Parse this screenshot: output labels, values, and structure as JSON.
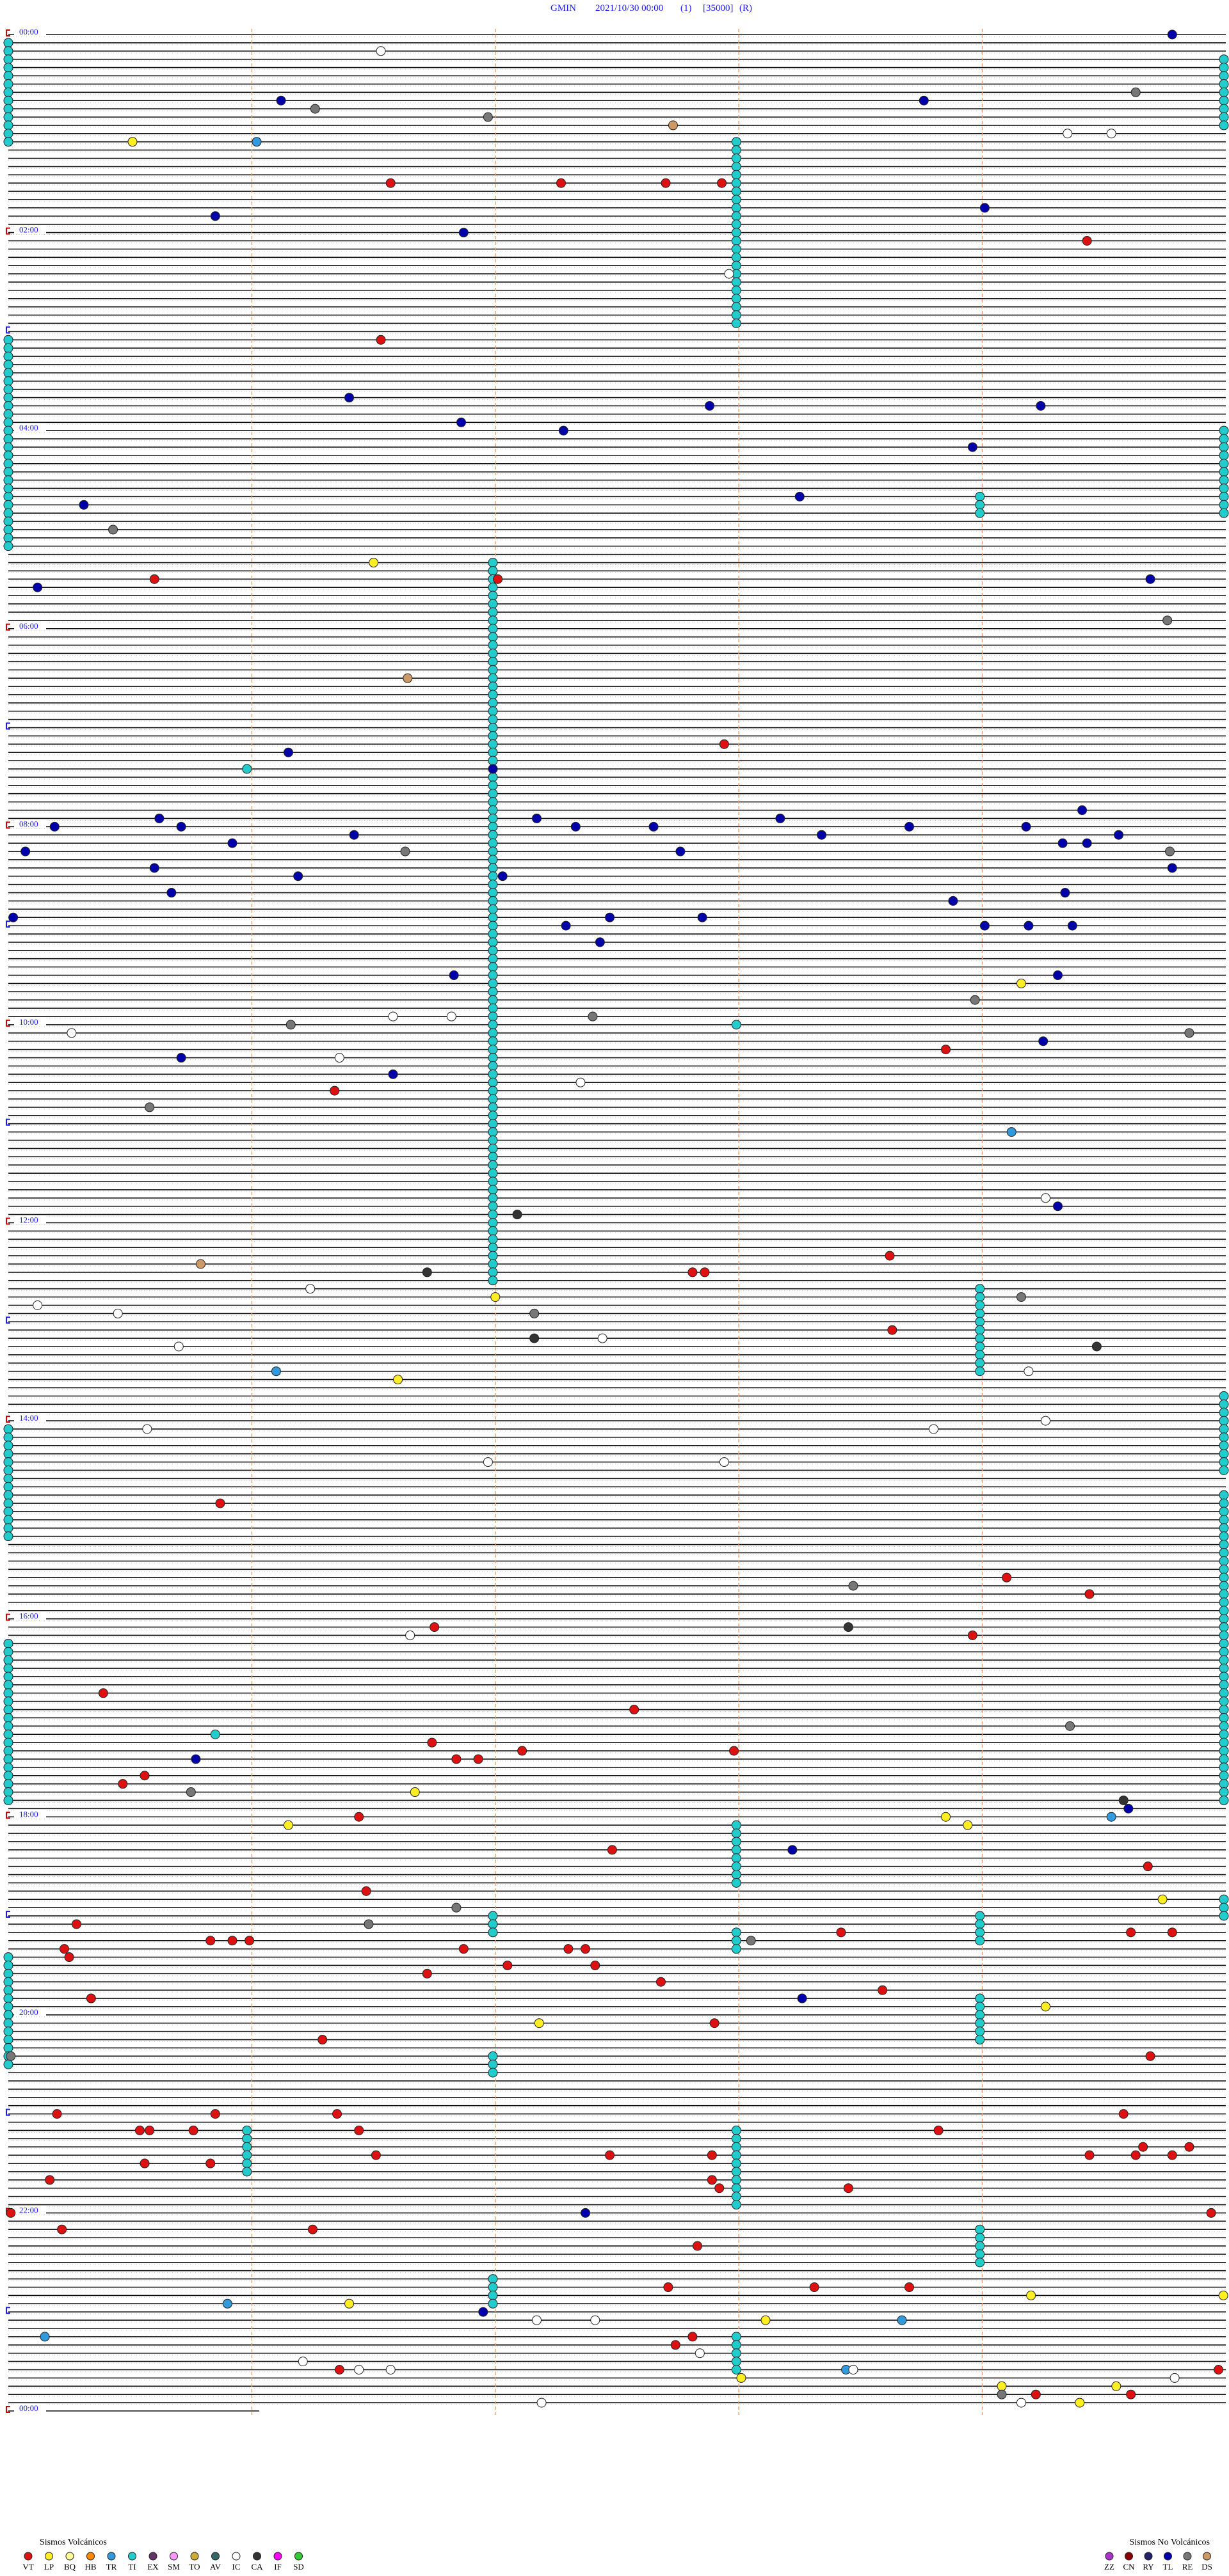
{
  "header": {
    "station": "GMIN",
    "datetime": "2021/10/30 00:00",
    "channel": "(1)",
    "gain": "[35000]",
    "mode": "(R)"
  },
  "hour_labels": [
    "00:00",
    "02:00",
    "04:00",
    "06:00",
    "08:00",
    "10:00",
    "12:00",
    "14:00",
    "16:00",
    "18:00",
    "20:00",
    "22:00",
    "00:00"
  ],
  "legend": {
    "volcanic": {
      "title": "Sismos Volcánicos",
      "items": [
        {
          "code": "VT",
          "color": "#dd1111"
        },
        {
          "code": "LP",
          "color": "#ffee22"
        },
        {
          "code": "BQ",
          "color": "#ffff99"
        },
        {
          "code": "HB",
          "color": "#ff8800"
        },
        {
          "code": "TR",
          "color": "#3399dd"
        },
        {
          "code": "TI",
          "color": "#22cccc"
        },
        {
          "code": "EX",
          "color": "#663366"
        },
        {
          "code": "SM",
          "color": "#ff99ff"
        },
        {
          "code": "TO",
          "color": "#ccaa33"
        },
        {
          "code": "AV",
          "color": "#336666"
        },
        {
          "code": "IC",
          "color": "#ffffff"
        },
        {
          "code": "CA",
          "color": "#333333"
        },
        {
          "code": "IF",
          "color": "#ff00ff"
        },
        {
          "code": "SD",
          "color": "#33cc33"
        }
      ]
    },
    "non_volcanic": {
      "title": "Sismos No Volcánicos",
      "items": [
        {
          "code": "ZZ",
          "color": "#aa33cc"
        },
        {
          "code": "CN",
          "color": "#880000"
        },
        {
          "code": "RY",
          "color": "#222266"
        },
        {
          "code": "TL",
          "color": "#0000aa"
        },
        {
          "code": "RE",
          "color": "#777777"
        },
        {
          "code": "DS",
          "color": "#cc9966"
        }
      ]
    }
  },
  "events": [
    [
      0,
      4.78,
      "TL"
    ],
    [
      2,
      1.53,
      "IC"
    ],
    [
      8,
      1.12,
      "TL"
    ],
    [
      9,
      1.26,
      "RE"
    ],
    [
      8,
      3.76,
      "TL"
    ],
    [
      7,
      4.63,
      "RE"
    ],
    [
      10,
      1.97,
      "RE"
    ],
    [
      11,
      2.73,
      "DS"
    ],
    [
      13,
      0.51,
      "LP"
    ],
    [
      13,
      1.02,
      "TR"
    ],
    [
      12,
      4.35,
      "IC"
    ],
    [
      12,
      4.53,
      "IC"
    ],
    [
      18,
      1.57,
      "VT"
    ],
    [
      18,
      2.27,
      "VT"
    ],
    [
      18,
      2.7,
      "VT"
    ],
    [
      18,
      2.93,
      "VT"
    ],
    [
      22,
      0.85,
      "TL"
    ],
    [
      21,
      4.01,
      "TL"
    ],
    [
      24,
      1.87,
      "TL"
    ],
    [
      25,
      4.43,
      "VT"
    ],
    [
      29,
      2.96,
      "IC"
    ],
    [
      37,
      1.53,
      "VT"
    ],
    [
      44,
      1.4,
      "TL"
    ],
    [
      45,
      2.88,
      "TL"
    ],
    [
      45,
      4.24,
      "TL"
    ],
    [
      47,
      1.86,
      "TL"
    ],
    [
      48,
      2.28,
      "TL"
    ],
    [
      50,
      3.96,
      "TL"
    ],
    [
      56,
      3.25,
      "TL"
    ],
    [
      57,
      0.31,
      "TL"
    ],
    [
      60,
      0.43,
      "RE"
    ],
    [
      64,
      1.5,
      "LP"
    ],
    [
      66,
      0.6,
      "VT"
    ],
    [
      66,
      2.01,
      "VT"
    ],
    [
      66,
      4.69,
      "TL"
    ],
    [
      67,
      0.12,
      "TL"
    ],
    [
      71,
      4.76,
      "RE"
    ],
    [
      78,
      1.64,
      "DS"
    ],
    [
      86,
      2.94,
      "VT"
    ],
    [
      87,
      1.15,
      "TL"
    ],
    [
      89,
      0.98,
      "TI"
    ],
    [
      89,
      1.99,
      "TL"
    ],
    [
      94,
      4.41,
      "TL"
    ],
    [
      95,
      0.62,
      "TL"
    ],
    [
      95,
      2.17,
      "TL"
    ],
    [
      95,
      3.17,
      "TL"
    ],
    [
      96,
      0.19,
      "TL"
    ],
    [
      96,
      0.71,
      "TL"
    ],
    [
      96,
      2.33,
      "TL"
    ],
    [
      96,
      2.65,
      "TL"
    ],
    [
      96,
      3.7,
      "TL"
    ],
    [
      96,
      4.18,
      "TL"
    ],
    [
      97,
      3.34,
      "TL"
    ],
    [
      97,
      4.56,
      "TL"
    ],
    [
      97,
      1.42,
      "TL"
    ],
    [
      98,
      0.92,
      "TL"
    ],
    [
      98,
      4.33,
      "TL"
    ],
    [
      98,
      4.43,
      "TL"
    ],
    [
      99,
      0.07,
      "TL"
    ],
    [
      99,
      1.63,
      "RE"
    ],
    [
      99,
      2.76,
      "TL"
    ],
    [
      99,
      4.77,
      "RE"
    ],
    [
      101,
      0.6,
      "TL"
    ],
    [
      101,
      4.78,
      "TL"
    ],
    [
      102,
      1.19,
      "TL"
    ],
    [
      102,
      2.03,
      "TL"
    ],
    [
      104,
      0.67,
      "TL"
    ],
    [
      104,
      4.34,
      "TL"
    ],
    [
      105,
      3.88,
      "TL"
    ],
    [
      107,
      0.02,
      "TL"
    ],
    [
      107,
      2.47,
      "TL"
    ],
    [
      107,
      2.85,
      "TL"
    ],
    [
      108,
      2.29,
      "TL"
    ],
    [
      108,
      4.01,
      "TL"
    ],
    [
      108,
      4.19,
      "TL"
    ],
    [
      108,
      4.37,
      "TL"
    ],
    [
      110,
      2.43,
      "TL"
    ],
    [
      114,
      4.31,
      "TL"
    ],
    [
      114,
      1.83,
      "TL"
    ],
    [
      115,
      4.16,
      "LP"
    ],
    [
      117,
      3.97,
      "RE"
    ],
    [
      119,
      1.58,
      "IC"
    ],
    [
      119,
      1.82,
      "IC"
    ],
    [
      119,
      2.4,
      "RE"
    ],
    [
      120,
      1.16,
      "RE"
    ],
    [
      121,
      0.26,
      "IC"
    ],
    [
      121,
      4.85,
      "RE"
    ],
    [
      122,
      4.25,
      "TL"
    ],
    [
      123,
      3.85,
      "VT"
    ],
    [
      124,
      0.71,
      "TL"
    ],
    [
      124,
      1.36,
      "IC"
    ],
    [
      126,
      1.58,
      "TL"
    ],
    [
      127,
      2.35,
      "IC"
    ],
    [
      128,
      1.34,
      "VT"
    ],
    [
      130,
      0.58,
      "RE"
    ],
    [
      133,
      4.12,
      "TR"
    ],
    [
      141,
      4.26,
      "IC"
    ],
    [
      142,
      4.31,
      "TL"
    ],
    [
      143,
      2.09,
      "CA"
    ],
    [
      148,
      3.62,
      "VT"
    ],
    [
      149,
      0.79,
      "DS"
    ],
    [
      150,
      1.72,
      "CA"
    ],
    [
      150,
      2.81,
      "VT"
    ],
    [
      150,
      2.86,
      "VT"
    ],
    [
      152,
      1.24,
      "IC"
    ],
    [
      153,
      2.0,
      "LP"
    ],
    [
      153,
      4.16,
      "RE"
    ],
    [
      154,
      0.12,
      "IC"
    ],
    [
      155,
      2.16,
      "RE"
    ],
    [
      155,
      0.45,
      "IC"
    ],
    [
      157,
      3.63,
      "VT"
    ],
    [
      158,
      2.16,
      "CA"
    ],
    [
      158,
      2.44,
      "IC"
    ],
    [
      159,
      0.7,
      "IC"
    ],
    [
      159,
      4.47,
      "CA"
    ],
    [
      162,
      4.19,
      "IC"
    ],
    [
      162,
      1.1,
      "TR"
    ],
    [
      163,
      1.6,
      "LP"
    ],
    [
      168,
      4.26,
      "IC"
    ],
    [
      169,
      3.8,
      "IC"
    ],
    [
      169,
      0.57,
      "IC"
    ],
    [
      173,
      2.94,
      "IC"
    ],
    [
      173,
      1.97,
      "IC"
    ],
    [
      178,
      0.87,
      "VT"
    ],
    [
      187,
      4.1,
      "VT"
    ],
    [
      189,
      4.44,
      "VT"
    ],
    [
      188,
      3.47,
      "RE"
    ],
    [
      193,
      1.75,
      "VT"
    ],
    [
      193,
      3.45,
      "CA"
    ],
    [
      194,
      1.65,
      "IC"
    ],
    [
      194,
      3.96,
      "VT"
    ],
    [
      201,
      0.39,
      "VT"
    ],
    [
      203,
      2.57,
      "VT"
    ],
    [
      205,
      4.36,
      "RE"
    ],
    [
      206,
      0.85,
      "TI"
    ],
    [
      207,
      1.74,
      "VT"
    ],
    [
      208,
      2.11,
      "VT"
    ],
    [
      208,
      2.98,
      "VT"
    ],
    [
      209,
      0.77,
      "TL"
    ],
    [
      209,
      1.84,
      "VT"
    ],
    [
      209,
      1.93,
      "VT"
    ],
    [
      211,
      0.56,
      "VT"
    ],
    [
      212,
      0.47,
      "VT"
    ],
    [
      213,
      1.67,
      "LP"
    ],
    [
      213,
      0.75,
      "RE"
    ],
    [
      214,
      4.58,
      "CA"
    ],
    [
      215,
      4.6,
      "TL"
    ],
    [
      216,
      1.44,
      "VT"
    ],
    [
      216,
      3.85,
      "LP"
    ],
    [
      216,
      4.53,
      "TR"
    ],
    [
      217,
      1.15,
      "LP"
    ],
    [
      217,
      3.94,
      "LP"
    ],
    [
      220,
      2.48,
      "VT"
    ],
    [
      220,
      3.22,
      "TL"
    ],
    [
      222,
      4.68,
      "VT"
    ],
    [
      225,
      1.47,
      "VT"
    ],
    [
      226,
      4.74,
      "LP"
    ],
    [
      227,
      1.84,
      "RE"
    ],
    [
      229,
      0.28,
      "VT"
    ],
    [
      229,
      1.48,
      "RE"
    ],
    [
      230,
      3.42,
      "VT"
    ],
    [
      230,
      4.61,
      "VT"
    ],
    [
      230,
      4.78,
      "VT"
    ],
    [
      231,
      0.83,
      "VT"
    ],
    [
      231,
      0.92,
      "VT"
    ],
    [
      231,
      0.99,
      "VT"
    ],
    [
      231,
      3.05,
      "RE"
    ],
    [
      232,
      0.23,
      "VT"
    ],
    [
      232,
      1.87,
      "VT"
    ],
    [
      232,
      2.3,
      "VT"
    ],
    [
      232,
      2.37,
      "VT"
    ],
    [
      233,
      0.25,
      "VT"
    ],
    [
      234,
      2.05,
      "VT"
    ],
    [
      234,
      2.41,
      "VT"
    ],
    [
      235,
      1.72,
      "VT"
    ],
    [
      236,
      2.68,
      "VT"
    ],
    [
      237,
      3.59,
      "VT"
    ],
    [
      238,
      0.34,
      "VT"
    ],
    [
      238,
      3.26,
      "TL"
    ],
    [
      239,
      4.26,
      "LP"
    ],
    [
      241,
      2.18,
      "LP"
    ],
    [
      241,
      2.9,
      "VT"
    ],
    [
      243,
      1.29,
      "VT"
    ],
    [
      245,
      4.69,
      "VT"
    ],
    [
      245,
      0.01,
      "RE"
    ],
    [
      252,
      0.2,
      "VT"
    ],
    [
      252,
      0.85,
      "VT"
    ],
    [
      252,
      1.35,
      "VT"
    ],
    [
      252,
      4.58,
      "VT"
    ],
    [
      254,
      0.54,
      "VT"
    ],
    [
      254,
      0.58,
      "VT"
    ],
    [
      254,
      0.76,
      "VT"
    ],
    [
      254,
      1.44,
      "VT"
    ],
    [
      254,
      3.82,
      "VT"
    ],
    [
      256,
      4.85,
      "VT"
    ],
    [
      256,
      4.66,
      "VT"
    ],
    [
      257,
      1.51,
      "VT"
    ],
    [
      257,
      2.47,
      "VT"
    ],
    [
      257,
      2.89,
      "VT"
    ],
    [
      257,
      4.44,
      "VT"
    ],
    [
      257,
      4.63,
      "VT"
    ],
    [
      257,
      4.78,
      "VT"
    ],
    [
      258,
      0.56,
      "VT"
    ],
    [
      258,
      0.83,
      "VT"
    ],
    [
      260,
      2.89,
      "VT"
    ],
    [
      260,
      0.17,
      "VT"
    ],
    [
      261,
      2.92,
      "VT"
    ],
    [
      261,
      3.45,
      "VT"
    ],
    [
      264,
      2.37,
      "TL"
    ],
    [
      264,
      0.01,
      "VT"
    ],
    [
      264,
      4.94,
      "VT"
    ],
    [
      266,
      0.22,
      "VT"
    ],
    [
      266,
      1.25,
      "VT"
    ],
    [
      268,
      2.83,
      "VT"
    ],
    [
      273,
      2.71,
      "VT"
    ],
    [
      273,
      3.31,
      "VT"
    ],
    [
      273,
      3.7,
      "VT"
    ],
    [
      274,
      4.2,
      "LP"
    ],
    [
      274,
      4.99,
      "LP"
    ],
    [
      275,
      1.4,
      "LP"
    ],
    [
      275,
      0.9,
      "TR"
    ],
    [
      276,
      1.95,
      "TL"
    ],
    [
      277,
      2.17,
      "IC"
    ],
    [
      277,
      2.41,
      "IC"
    ],
    [
      277,
      3.11,
      "LP"
    ],
    [
      277,
      3.67,
      "TR"
    ],
    [
      279,
      0.15,
      "TR"
    ],
    [
      279,
      2.81,
      "VT"
    ],
    [
      280,
      2.74,
      "VT"
    ],
    [
      281,
      2.84,
      "IC"
    ],
    [
      282,
      1.21,
      "IC"
    ],
    [
      283,
      1.36,
      "VT"
    ],
    [
      283,
      1.44,
      "IC"
    ],
    [
      283,
      1.57,
      "IC"
    ],
    [
      283,
      3.44,
      "TR"
    ],
    [
      283,
      3.47,
      "IC"
    ],
    [
      283,
      4.97,
      "VT"
    ],
    [
      284,
      3.01,
      "LP"
    ],
    [
      284,
      4.79,
      "IC"
    ],
    [
      285,
      4.08,
      "LP"
    ],
    [
      285,
      4.55,
      "LP"
    ],
    [
      286,
      4.08,
      "RE"
    ],
    [
      286,
      4.22,
      "VT"
    ],
    [
      286,
      4.61,
      "VT"
    ],
    [
      287,
      4.16,
      "IC"
    ],
    [
      287,
      4.4,
      "LP"
    ],
    [
      287,
      2.19,
      "IC"
    ]
  ],
  "runs": [
    {
      "code": "TI",
      "minute": 1.99,
      "first": 64,
      "last": 151
    },
    {
      "code": "TI",
      "minute": 2.99,
      "first": 13,
      "last": 35
    },
    {
      "code": "TI",
      "minute": 3.99,
      "first": 152,
      "last": 162
    },
    {
      "code": "TI",
      "minute": 2.99,
      "first": 217,
      "last": 224
    },
    {
      "code": "TI",
      "minute": 2.99,
      "first": 230,
      "last": 232
    },
    {
      "code": "TI",
      "minute": 2.99,
      "first": 254,
      "last": 263
    },
    {
      "code": "TI",
      "minute": 2.99,
      "first": 279,
      "last": 283
    },
    {
      "code": "TI",
      "minute": 1.99,
      "first": 228,
      "last": 230
    },
    {
      "code": "TI",
      "minute": 1.99,
      "first": 245,
      "last": 247
    },
    {
      "code": "TI",
      "minute": 0.98,
      "first": 254,
      "last": 259
    },
    {
      "code": "TI",
      "minute": 1.99,
      "first": 272,
      "last": 275
    },
    {
      "code": "TI",
      "minute": 3.99,
      "first": 228,
      "last": 231
    },
    {
      "code": "TI",
      "minute": 3.99,
      "first": 238,
      "last": 243
    },
    {
      "code": "TI",
      "minute": 3.99,
      "first": 266,
      "last": 270
    },
    {
      "code": "TI",
      "minute": 3.99,
      "first": 56,
      "last": 58
    },
    {
      "code": "TI",
      "minute": 2.99,
      "first": 120,
      "last": 120
    },
    {
      "code": "TI",
      "minute": 0,
      "first": 1,
      "last": 13
    },
    {
      "code": "TI",
      "minute": 0,
      "first": 37,
      "last": 62
    },
    {
      "code": "TI",
      "minute": 0,
      "first": 169,
      "last": 182
    },
    {
      "code": "TI",
      "minute": 0,
      "first": 195,
      "last": 214
    },
    {
      "code": "TI",
      "minute": 0,
      "first": 233,
      "last": 246
    },
    {
      "code": "TI",
      "minute": 5,
      "first": 3,
      "last": 11
    },
    {
      "code": "TI",
      "minute": 5,
      "first": 48,
      "last": 58
    },
    {
      "code": "TI",
      "minute": 5,
      "first": 165,
      "last": 174
    },
    {
      "code": "TI",
      "minute": 5,
      "first": 177,
      "last": 214
    },
    {
      "code": "TI",
      "minute": 5,
      "first": 226,
      "last": 228
    }
  ]
}
